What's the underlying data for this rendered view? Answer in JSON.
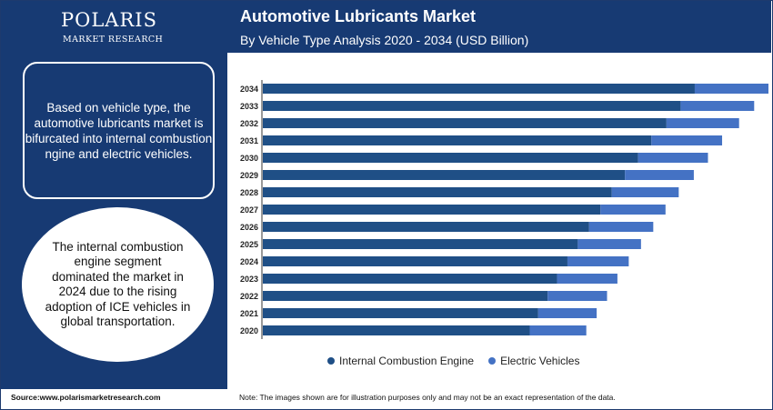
{
  "brand": {
    "name": "POLARIS",
    "tagline": "MARKET RESEARCH"
  },
  "header": {
    "title": "Automotive Lubricants Market",
    "subtitle": "By Vehicle Type Analysis 2020 - 2034 (USD Billion)"
  },
  "panel": {
    "box_text": "Based on vehicle type, the automotive lubricants market is bifurcated into internal combustion ngine and electric vehicles.",
    "circle_text": "The internal combustion engine segment dominated the market in 2024 due to the rising adoption of ICE vehicles in global transportation."
  },
  "footer": {
    "source": "Source:www.polarismarketresearch.com",
    "note": "Note: The images shown are for illustration purposes only and may not be an exact representation of the data."
  },
  "colors": {
    "navy": "#173a73",
    "ice": "#1f4f86",
    "ev": "#4472c4"
  },
  "chart_data": {
    "type": "bar",
    "orientation": "horizontal",
    "stacked": true,
    "categories": [
      "2034",
      "2033",
      "2032",
      "2031",
      "2030",
      "2029",
      "2028",
      "2027",
      "2026",
      "2025",
      "2024",
      "2023",
      "2022",
      "2021",
      "2020"
    ],
    "series": [
      {
        "name": "Internal Combustion Engine",
        "color": "#1f4f86",
        "values": [
          45.8,
          44.3,
          42.8,
          41.2,
          39.8,
          38.4,
          37.0,
          35.8,
          34.6,
          33.4,
          32.3,
          31.2,
          30.2,
          29.2,
          28.3
        ]
      },
      {
        "name": "Electric Vehicles",
        "color": "#4472c4",
        "values": [
          8.0,
          7.8,
          7.7,
          7.5,
          7.4,
          7.3,
          7.1,
          6.9,
          6.8,
          6.7,
          6.5,
          6.4,
          6.3,
          6.2,
          6.0
        ]
      }
    ],
    "xlim": [
      0,
      54
    ],
    "title": "",
    "xlabel": "",
    "ylabel": "",
    "grid": false,
    "legend": "bottom"
  }
}
